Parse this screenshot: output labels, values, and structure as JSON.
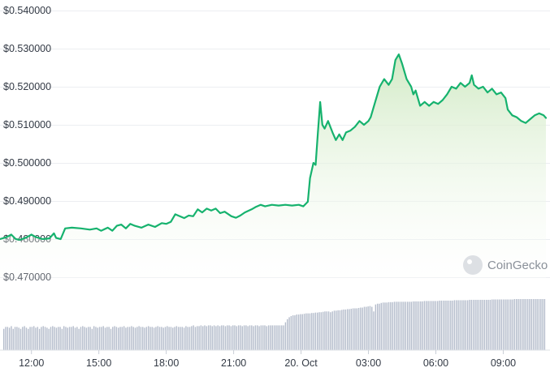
{
  "chart_data": {
    "type": "area",
    "title": "",
    "xlabel": "",
    "ylabel": "",
    "ylim": [
      0.465,
      0.5415
    ],
    "y_ticks": [
      "$0.540000",
      "$0.530000",
      "$0.520000",
      "$0.510000",
      "$0.500000",
      "$0.490000",
      "$0.480000",
      "$0.470000"
    ],
    "y_tick_values": [
      0.54,
      0.53,
      0.52,
      0.51,
      0.5,
      0.49,
      0.48,
      0.47
    ],
    "x_range_hours": [
      10.6,
      34.9
    ],
    "x_ticks": [
      {
        "label": "12:00",
        "hour": 12
      },
      {
        "label": "15:00",
        "hour": 15
      },
      {
        "label": "18:00",
        "hour": 18
      },
      {
        "label": "21:00",
        "hour": 21
      },
      {
        "label": "20. Oct",
        "hour": 24
      },
      {
        "label": "03:00",
        "hour": 27
      },
      {
        "label": "06:00",
        "hour": 30
      },
      {
        "label": "09:00",
        "hour": 33
      }
    ],
    "grid": true,
    "series": [
      {
        "color": "#16b26e",
        "points": [
          [
            10.6,
            0.48
          ],
          [
            10.9,
            0.4805
          ],
          [
            11.1,
            0.4812
          ],
          [
            11.3,
            0.48
          ],
          [
            11.5,
            0.4798
          ],
          [
            11.8,
            0.4805
          ],
          [
            12.0,
            0.4812
          ],
          [
            12.2,
            0.4805
          ],
          [
            12.5,
            0.48
          ],
          [
            12.8,
            0.4802
          ],
          [
            13.0,
            0.4815
          ],
          [
            13.1,
            0.4803
          ],
          [
            13.3,
            0.48
          ],
          [
            13.5,
            0.4828
          ],
          [
            13.8,
            0.483
          ],
          [
            14.2,
            0.4828
          ],
          [
            14.6,
            0.4825
          ],
          [
            14.9,
            0.4828
          ],
          [
            15.1,
            0.4822
          ],
          [
            15.4,
            0.483
          ],
          [
            15.6,
            0.4822
          ],
          [
            15.8,
            0.4835
          ],
          [
            16.0,
            0.4838
          ],
          [
            16.2,
            0.4828
          ],
          [
            16.4,
            0.484
          ],
          [
            16.6,
            0.4835
          ],
          [
            16.9,
            0.483
          ],
          [
            17.2,
            0.4838
          ],
          [
            17.5,
            0.4832
          ],
          [
            17.8,
            0.4842
          ],
          [
            18.0,
            0.484
          ],
          [
            18.2,
            0.4845
          ],
          [
            18.4,
            0.4865
          ],
          [
            18.6,
            0.486
          ],
          [
            18.8,
            0.4855
          ],
          [
            19.0,
            0.4862
          ],
          [
            19.2,
            0.486
          ],
          [
            19.4,
            0.4878
          ],
          [
            19.6,
            0.487
          ],
          [
            19.8,
            0.488
          ],
          [
            20.0,
            0.4875
          ],
          [
            20.2,
            0.488
          ],
          [
            20.4,
            0.4868
          ],
          [
            20.6,
            0.4872
          ],
          [
            20.9,
            0.486
          ],
          [
            21.1,
            0.4856
          ],
          [
            21.3,
            0.4862
          ],
          [
            21.5,
            0.487
          ],
          [
            21.8,
            0.4878
          ],
          [
            22.0,
            0.4885
          ],
          [
            22.2,
            0.489
          ],
          [
            22.4,
            0.4886
          ],
          [
            22.7,
            0.489
          ],
          [
            23.0,
            0.4888
          ],
          [
            23.3,
            0.489
          ],
          [
            23.6,
            0.4888
          ],
          [
            23.9,
            0.489
          ],
          [
            24.1,
            0.4886
          ],
          [
            24.3,
            0.4898
          ],
          [
            24.4,
            0.496
          ],
          [
            24.55,
            0.5
          ],
          [
            24.65,
            0.4995
          ],
          [
            24.75,
            0.508
          ],
          [
            24.85,
            0.516
          ],
          [
            24.95,
            0.51
          ],
          [
            25.05,
            0.509
          ],
          [
            25.2,
            0.511
          ],
          [
            25.4,
            0.508
          ],
          [
            25.55,
            0.506
          ],
          [
            25.7,
            0.5075
          ],
          [
            25.85,
            0.506
          ],
          [
            26.0,
            0.508
          ],
          [
            26.2,
            0.5085
          ],
          [
            26.4,
            0.5095
          ],
          [
            26.6,
            0.511
          ],
          [
            26.8,
            0.51
          ],
          [
            27.0,
            0.511
          ],
          [
            27.1,
            0.512
          ],
          [
            27.3,
            0.516
          ],
          [
            27.5,
            0.52
          ],
          [
            27.7,
            0.522
          ],
          [
            27.9,
            0.5205
          ],
          [
            28.05,
            0.522
          ],
          [
            28.2,
            0.527
          ],
          [
            28.35,
            0.5285
          ],
          [
            28.5,
            0.526
          ],
          [
            28.7,
            0.522
          ],
          [
            28.9,
            0.52
          ],
          [
            29.0,
            0.518
          ],
          [
            29.1,
            0.519
          ],
          [
            29.3,
            0.515
          ],
          [
            29.5,
            0.516
          ],
          [
            29.7,
            0.515
          ],
          [
            29.9,
            0.516
          ],
          [
            30.1,
            0.5155
          ],
          [
            30.3,
            0.5165
          ],
          [
            30.5,
            0.518
          ],
          [
            30.7,
            0.52
          ],
          [
            30.9,
            0.5195
          ],
          [
            31.1,
            0.521
          ],
          [
            31.3,
            0.52
          ],
          [
            31.5,
            0.521
          ],
          [
            31.6,
            0.523
          ],
          [
            31.7,
            0.5205
          ],
          [
            31.9,
            0.5195
          ],
          [
            32.1,
            0.52
          ],
          [
            32.3,
            0.5185
          ],
          [
            32.5,
            0.5195
          ],
          [
            32.7,
            0.518
          ],
          [
            32.9,
            0.5185
          ],
          [
            33.1,
            0.517
          ],
          [
            33.2,
            0.514
          ],
          [
            33.4,
            0.5125
          ],
          [
            33.6,
            0.512
          ],
          [
            33.8,
            0.511
          ],
          [
            34.0,
            0.5105
          ],
          [
            34.2,
            0.5115
          ],
          [
            34.4,
            0.5125
          ],
          [
            34.6,
            0.513
          ],
          [
            34.8,
            0.5125
          ],
          [
            34.9,
            0.5118
          ]
        ]
      }
    ],
    "volume_bars": {
      "color": "#b4bccb",
      "values": [
        0.55,
        0.6,
        0.6,
        0.58,
        0.62,
        0.55,
        0.6,
        0.6,
        0.58,
        0.55,
        0.6,
        0.62,
        0.58,
        0.55,
        0.6,
        0.6,
        0.62,
        0.58,
        0.6,
        0.55,
        0.6,
        0.62,
        0.6,
        0.58,
        0.55,
        0.6,
        0.62,
        0.6,
        0.58,
        0.6,
        0.6,
        0.55,
        0.62,
        0.6,
        0.58,
        0.6,
        0.6,
        0.62,
        0.58,
        0.6,
        0.55,
        0.6,
        0.62,
        0.6,
        0.58,
        0.6,
        0.6,
        0.55,
        0.62,
        0.6,
        0.58,
        0.6,
        0.6,
        0.62,
        0.58,
        0.6,
        0.6,
        0.55,
        0.6,
        0.62,
        0.6,
        0.58,
        0.6,
        0.6,
        0.62,
        0.58,
        0.6,
        0.6,
        0.62,
        0.6,
        0.58,
        0.6,
        0.62,
        0.6,
        0.6,
        0.58,
        0.6,
        0.62,
        0.6,
        0.6,
        0.58,
        0.6,
        0.62,
        0.6,
        0.6,
        0.58,
        0.6,
        0.62,
        0.6,
        0.6,
        0.58,
        0.6,
        0.62,
        0.6,
        0.6,
        0.6,
        0.58,
        0.62,
        0.6,
        0.6,
        0.62,
        0.64,
        0.6,
        0.62,
        0.62,
        0.64,
        0.62,
        0.64,
        0.62,
        0.64,
        0.64,
        0.62,
        0.64,
        0.62,
        0.64,
        0.62,
        0.64,
        0.64,
        0.62,
        0.64,
        0.64,
        0.62,
        0.64,
        0.64,
        0.62,
        0.64,
        0.64,
        0.62,
        0.64,
        0.64,
        0.62,
        0.64,
        0.64,
        0.62,
        0.64,
        0.64,
        0.62,
        0.64,
        0.64,
        0.64,
        0.62,
        0.64,
        0.64,
        0.64,
        0.64,
        0.64,
        0.64,
        0.64,
        0.64,
        0.64,
        0.72,
        0.8,
        0.85,
        0.88,
        0.9,
        0.9,
        0.92,
        0.92,
        0.93,
        0.93,
        0.94,
        0.95,
        0.95,
        0.95,
        0.96,
        0.96,
        0.97,
        0.97,
        0.98,
        0.98,
        0.99,
        1.0,
        1.0,
        1.0,
        0.98,
        1.0,
        1.02,
        1.02,
        1.03,
        1.03,
        1.04,
        1.05,
        1.05,
        1.06,
        1.06,
        1.07,
        1.08,
        1.08,
        1.08,
        1.09,
        1.1,
        1.1,
        1.12,
        1.12,
        1.13,
        1.14,
        1.12,
        1.0,
        1.18,
        1.2,
        1.2,
        1.22,
        1.23,
        1.23,
        1.23,
        1.24,
        1.24,
        1.24,
        1.25,
        1.25,
        1.25,
        1.25,
        1.25,
        1.25,
        1.25,
        1.25,
        1.25,
        1.25,
        1.26,
        1.26,
        1.26,
        1.26,
        1.26,
        1.26,
        1.27,
        1.27,
        1.27,
        1.27,
        1.27,
        1.27,
        1.27,
        1.27,
        1.28,
        1.28,
        1.28,
        1.28,
        1.28,
        1.28,
        1.28,
        1.28,
        1.29,
        1.29,
        1.29,
        1.29,
        1.29,
        1.29,
        1.29,
        1.29,
        1.3,
        1.3,
        1.3,
        1.3,
        1.3,
        1.3,
        1.3,
        1.3,
        1.3,
        1.3,
        1.3,
        1.3,
        1.31,
        1.31,
        1.31,
        1.31,
        1.31,
        1.31,
        1.31,
        1.31,
        1.31,
        1.31,
        1.31,
        1.31,
        1.32,
        1.32,
        1.32,
        1.32,
        1.32,
        1.32,
        1.32,
        1.32,
        1.32,
        1.32,
        1.32,
        1.32,
        1.32,
        1.32,
        1.32,
        1.32,
        1.32
      ]
    }
  },
  "watermark": {
    "text": "CoinGecko",
    "icon": "gecko-icon"
  },
  "colors": {
    "line": "#16b26e",
    "area_top": "#d5ecc9",
    "grid": "#eceef1",
    "volume": "#b4bccb",
    "axis_text": "#333a45"
  }
}
